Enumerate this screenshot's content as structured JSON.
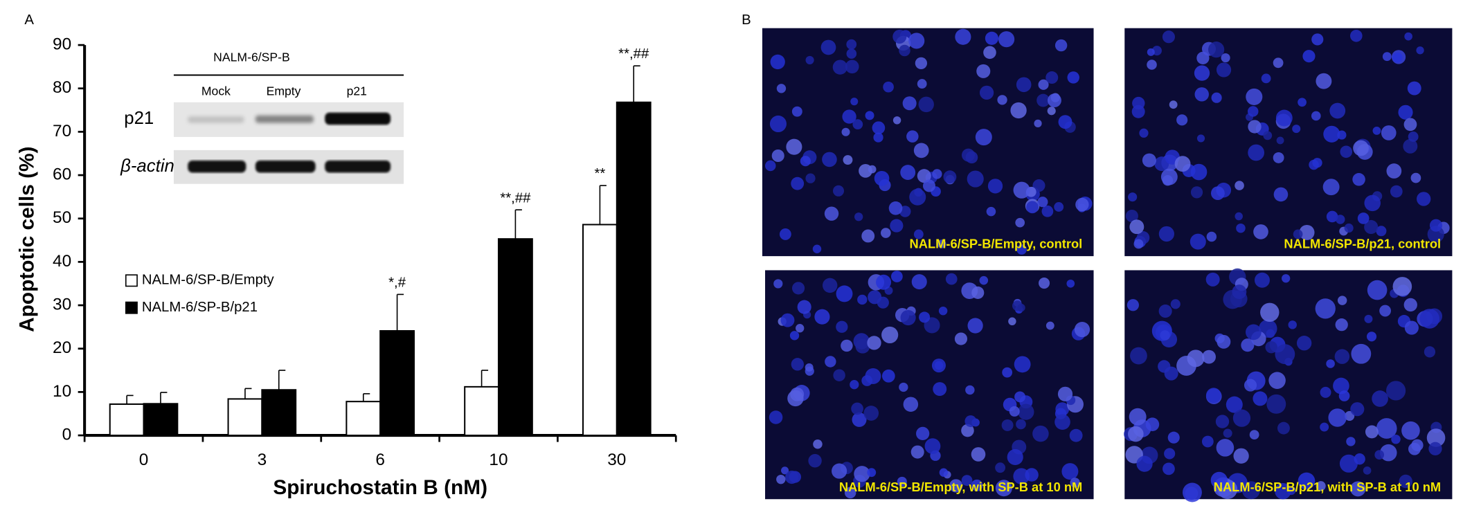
{
  "panel_a": "A",
  "chart_data": {
    "type": "bar",
    "x_label": "Spiruchostatin B (nM)",
    "y_label": "Apoptotic cells (%)",
    "categories": [
      "0",
      "3",
      "6",
      "10",
      "30"
    ],
    "series": [
      {
        "name": "NALM-6/SP-B/Empty",
        "color": "#ffffff",
        "values": [
          7.2,
          8.4,
          7.8,
          11.2,
          48.6
        ],
        "errors": [
          2.0,
          2.4,
          1.8,
          3.8,
          9.0
        ],
        "annotations": [
          null,
          null,
          null,
          null,
          "**"
        ]
      },
      {
        "name": "NALM-6/SP-B/p21",
        "color": "#000000",
        "values": [
          7.3,
          10.5,
          24.1,
          45.3,
          76.8
        ],
        "errors": [
          2.6,
          4.5,
          8.4,
          6.7,
          8.4
        ],
        "annotations": [
          null,
          null,
          "*,#",
          "**,##",
          "**,##"
        ]
      }
    ],
    "ylim": [
      0,
      90
    ],
    "yticks": [
      0,
      10,
      20,
      30,
      40,
      50,
      60,
      70,
      80,
      90
    ],
    "grid": false,
    "legend": "left"
  },
  "inset": {
    "title": "NALM-6/SP-B",
    "lanes": [
      "Mock",
      "Empty",
      "p21"
    ],
    "rows": [
      "p21",
      "β-actin"
    ]
  },
  "panel_b": {
    "label": "B",
    "captions": [
      "NALM-6/SP-B/Empty,  control",
      "NALM-6/SP-B/p21,  control",
      "NALM-6/SP-B/Empty,  with SP-B at 10 nM",
      "NALM-6/SP-B/p21,  with SP-B at 10 nM"
    ]
  }
}
